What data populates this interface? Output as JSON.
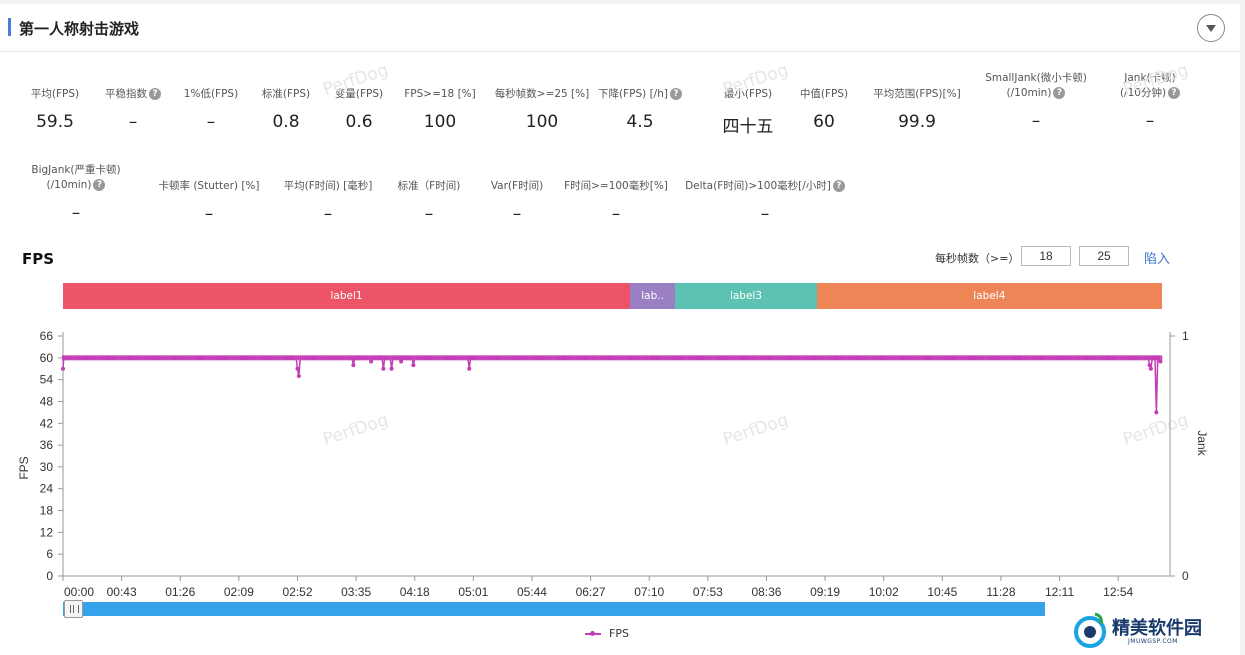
{
  "header": {
    "title": "第一人称射击游戏"
  },
  "metrics_row1": [
    {
      "label": "平均(FPS)",
      "value": "59.5"
    },
    {
      "label": "平稳指数",
      "value": "–",
      "help": true
    },
    {
      "label": "1%低(FPS)",
      "value": "–"
    },
    {
      "label": "标准(FPS)",
      "value": "0.8"
    },
    {
      "label": "变量(FPS)",
      "value": "0.6"
    },
    {
      "label": "FPS>=18 [%]",
      "value": "100"
    },
    {
      "label": "每秒帧数>=25 [%]",
      "value": "100"
    },
    {
      "label": "下降(FPS) [/h]",
      "value": "4.5",
      "help": true
    },
    {
      "label": "最小(FPS)",
      "value": "四十五"
    },
    {
      "label": "中值(FPS)",
      "value": "60"
    },
    {
      "label": "平均范围(FPS)[%]",
      "value": "99.9"
    },
    {
      "label": "SmallJank(微小卡顿)",
      "sub": "(/10min)",
      "value": "–",
      "help": true
    },
    {
      "label": "Jank(卡顿)",
      "sub": "(/10分钟)",
      "value": "–",
      "help": true
    }
  ],
  "metrics_row2": [
    {
      "label": "BigJank(严重卡顿)",
      "sub": "(/10min)",
      "value": "–",
      "help": true
    },
    {
      "label": "卡顿率 (Stutter) [%]",
      "value": "–"
    },
    {
      "label": "平均(F时间) [毫秒]",
      "value": "–"
    },
    {
      "label": "标准（F时间)",
      "value": "–"
    },
    {
      "label": "Var(F时间)",
      "value": "–"
    },
    {
      "label": "F时间>=100毫秒[%]",
      "value": "–"
    },
    {
      "label": "Delta(F时间)>100毫秒[/小时]",
      "value": "–",
      "help": true
    }
  ],
  "watermark_text": "PerfDog",
  "chart_controls": {
    "threshold_label": "每秒帧数（>=）",
    "threshold_1": "18",
    "threshold_2": "25",
    "import_label": "陷入"
  },
  "chart_data": {
    "type": "line",
    "title": "FPS",
    "ylabel": "FPS",
    "y2label": "Jank",
    "ylim": [
      0,
      66
    ],
    "y_ticks": [
      0,
      6,
      12,
      18,
      24,
      30,
      36,
      42,
      48,
      54,
      60,
      66
    ],
    "y2lim": [
      0,
      1
    ],
    "y2_ticks": [
      0,
      1
    ],
    "xlim_seconds": [
      0,
      812
    ],
    "x_ticks": [
      "00:00",
      "00:43",
      "01:26",
      "02:09",
      "02:52",
      "03:35",
      "04:18",
      "05:01",
      "05:44",
      "06:27",
      "07:10",
      "07:53",
      "08:36",
      "09:19",
      "10:02",
      "10:45",
      "11:28",
      "12:11",
      "12:54"
    ],
    "labels": [
      {
        "name": "label1",
        "start": 0,
        "end": 416,
        "color": "#ee5468"
      },
      {
        "name": "lab..",
        "start": 416,
        "end": 449,
        "color": "#9a7fc4"
      },
      {
        "name": "label3",
        "start": 449,
        "end": 553,
        "color": "#5ec2b3"
      },
      {
        "name": "label4",
        "start": 553,
        "end": 806,
        "color": "#ee8557"
      }
    ],
    "series": [
      {
        "name": "FPS",
        "color": "#c33cb5",
        "baseline": 60,
        "points": [
          [
            0,
            57
          ],
          [
            0.5,
            60
          ],
          [
            171,
            60
          ],
          [
            172,
            57
          ],
          [
            173,
            55
          ],
          [
            174,
            60
          ],
          [
            212,
            60
          ],
          [
            213,
            58
          ],
          [
            214,
            60
          ],
          [
            225,
            60
          ],
          [
            226,
            59
          ],
          [
            227,
            60
          ],
          [
            234,
            60
          ],
          [
            235,
            57
          ],
          [
            236,
            60
          ],
          [
            240,
            60
          ],
          [
            241,
            57
          ],
          [
            242,
            60
          ],
          [
            247,
            60
          ],
          [
            248,
            59
          ],
          [
            249,
            60
          ],
          [
            256,
            60
          ],
          [
            257,
            58
          ],
          [
            258,
            60
          ],
          [
            297,
            60
          ],
          [
            298,
            57
          ],
          [
            299,
            60
          ],
          [
            796,
            60
          ],
          [
            797,
            58
          ],
          [
            798,
            57
          ],
          [
            799,
            60
          ],
          [
            801,
            60
          ],
          [
            802,
            45
          ],
          [
            803,
            60
          ],
          [
            805,
            59
          ],
          [
            806,
            60
          ]
        ]
      }
    ],
    "legend": [
      "FPS"
    ],
    "legend_position": "bottom"
  },
  "logo": {
    "text": "精美软件园",
    "sub": "JMUWGSP.COM"
  }
}
